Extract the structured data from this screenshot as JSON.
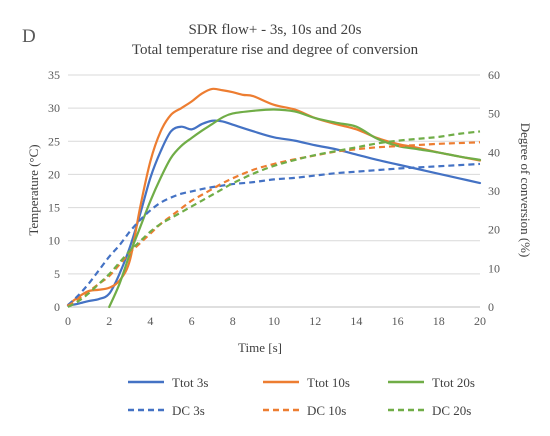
{
  "panel_letter": "D",
  "chart_data": {
    "type": "line",
    "title": "SDR flow+ - 3s, 10s and 20s",
    "subtitle": "Total temperature rise and degree of conversion",
    "xlabel": "Time [s]",
    "ylabel": "Temperature (°C)",
    "y2label": "Degree of conversion (%)",
    "xlim": [
      0,
      20
    ],
    "ylim": [
      0,
      35
    ],
    "y2lim": [
      0,
      60
    ],
    "xticks": [
      "0",
      "2",
      "4",
      "6",
      "8",
      "10",
      "12",
      "14",
      "16",
      "18",
      "20"
    ],
    "yticks": [
      "0",
      "5",
      "10",
      "15",
      "20",
      "25",
      "30",
      "35"
    ],
    "y2ticks": [
      "0",
      "10",
      "20",
      "30",
      "40",
      "50",
      "60"
    ],
    "grid": true,
    "legend_position": "bottom",
    "series": [
      {
        "name": "Ttot 3s",
        "axis": "left",
        "color": "#4472C4",
        "dash": "solid",
        "x": [
          0,
          0.5,
          1,
          1.5,
          2,
          2.5,
          3,
          3.5,
          4,
          4.5,
          5,
          5.5,
          6,
          6.5,
          7,
          7.5,
          8,
          9,
          10,
          11,
          12,
          13,
          14,
          15,
          16,
          17,
          18,
          19,
          20
        ],
        "y": [
          0.2,
          0.5,
          0.9,
          1.2,
          2,
          5,
          9,
          14,
          19.5,
          23.5,
          26.5,
          27.2,
          26.8,
          27.6,
          28.1,
          28,
          27.5,
          26.5,
          25.6,
          25.1,
          24.4,
          23.8,
          23,
          22.2,
          21.5,
          20.8,
          20.1,
          19.4,
          18.7
        ]
      },
      {
        "name": "Ttot 10s",
        "axis": "left",
        "color": "#ED7D31",
        "dash": "solid",
        "x": [
          0,
          0.5,
          1,
          1.5,
          2,
          2.5,
          3,
          3.5,
          4,
          4.5,
          5,
          5.5,
          6,
          6.5,
          7,
          7.5,
          8,
          8.5,
          9,
          10,
          11,
          12,
          13,
          14,
          15,
          16,
          17,
          18,
          19,
          20
        ],
        "y": [
          0.3,
          1.5,
          2.4,
          2.6,
          2.9,
          4,
          7,
          15,
          22,
          26.5,
          29,
          30,
          31,
          32.2,
          32.9,
          32.7,
          32.4,
          32,
          31.8,
          30.5,
          29.8,
          28.5,
          27.6,
          26.8,
          25.5,
          24.6,
          24,
          23.3,
          22.7,
          22.1
        ]
      },
      {
        "name": "Ttot 20s",
        "axis": "left",
        "color": "#70AD47",
        "dash": "solid",
        "x": [
          2,
          2.5,
          3,
          3.5,
          4,
          4.5,
          5,
          5.5,
          6,
          6.5,
          7,
          7.5,
          8,
          9,
          10,
          11,
          12,
          13,
          14,
          15,
          16,
          17,
          18,
          19,
          20
        ],
        "y": [
          0,
          3.5,
          8,
          12,
          16,
          19.5,
          22.5,
          24.3,
          25.5,
          26.6,
          27.6,
          28.6,
          29.2,
          29.6,
          29.8,
          29.5,
          28.5,
          27.8,
          27.2,
          25.4,
          24.3,
          23.8,
          23.3,
          22.7,
          22.2
        ]
      },
      {
        "name": "DC 3s",
        "axis": "right",
        "color": "#4472C4",
        "dash": "dashed",
        "x": [
          0,
          0.5,
          1,
          1.5,
          2,
          2.5,
          3,
          3.5,
          4,
          4.5,
          5,
          5.5,
          6,
          6.5,
          7,
          7.5,
          8,
          9,
          10,
          11,
          12,
          13,
          14,
          15,
          16,
          17,
          18,
          19,
          20
        ],
        "y": [
          0.5,
          3,
          6,
          9.5,
          13,
          16,
          19.5,
          22.5,
          25,
          27,
          28.3,
          29.3,
          29.9,
          30.5,
          31,
          31.4,
          31.8,
          32.3,
          33,
          33.4,
          34,
          34.6,
          35,
          35.4,
          35.8,
          36.1,
          36.4,
          36.7,
          37
        ]
      },
      {
        "name": "DC 10s",
        "axis": "right",
        "color": "#ED7D31",
        "dash": "dashed",
        "x": [
          0,
          0.5,
          1,
          1.5,
          2,
          2.5,
          3,
          3.5,
          4,
          4.5,
          5,
          5.5,
          6,
          6.5,
          7,
          7.5,
          8,
          9,
          10,
          11,
          12,
          13,
          14,
          15,
          16,
          17,
          18,
          19,
          20
        ],
        "y": [
          0.3,
          2,
          4,
          6,
          8,
          11,
          14,
          16.5,
          19,
          21.5,
          23.5,
          25.5,
          27.5,
          29,
          30.5,
          32,
          33.3,
          35.5,
          37,
          38.2,
          39.2,
          40.2,
          40.8,
          41.3,
          41.6,
          41.9,
          42.2,
          42.4,
          42.6
        ]
      },
      {
        "name": "DC 20s",
        "axis": "right",
        "color": "#70AD47",
        "dash": "dashed",
        "x": [
          0,
          0.5,
          1,
          1.5,
          2,
          2.5,
          3,
          3.5,
          4,
          4.5,
          5,
          5.5,
          6,
          6.5,
          7,
          7.5,
          8,
          9,
          10,
          11,
          12,
          13,
          14,
          15,
          16,
          17,
          18,
          19,
          20
        ],
        "y": [
          0,
          1.5,
          3.5,
          6,
          8.5,
          11.5,
          14.5,
          17,
          19.5,
          21.5,
          23,
          24.5,
          26,
          27.5,
          29,
          30.5,
          32,
          34.5,
          36.5,
          38,
          39.3,
          40.3,
          41.3,
          42.3,
          43,
          43.5,
          44,
          44.8,
          45.4
        ]
      }
    ]
  }
}
